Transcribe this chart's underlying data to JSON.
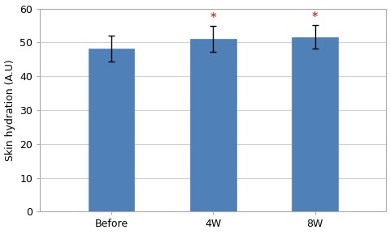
{
  "categories": [
    "Before",
    "4W",
    "8W"
  ],
  "values": [
    48.2,
    51.0,
    51.6
  ],
  "errors": [
    3.8,
    3.8,
    3.5
  ],
  "bar_color": "#5080b8",
  "bar_edgecolor": "#5080b8",
  "bar_width": 0.45,
  "ylabel": "Skin hydration (A.U)",
  "ylim": [
    0,
    60
  ],
  "yticks": [
    0,
    10,
    20,
    30,
    40,
    50,
    60
  ],
  "significance": [
    false,
    true,
    true
  ],
  "sig_color": "#cc0000",
  "sig_marker": "*",
  "sig_fontsize": 11,
  "grid_color": "#d0d0d0",
  "background_color": "#ffffff",
  "ylabel_fontsize": 9,
  "tick_fontsize": 9,
  "errorbar_capsize": 3,
  "errorbar_color": "black",
  "errorbar_linewidth": 1.0,
  "spine_color": "#aaaaaa",
  "xlim_left": -0.7,
  "xlim_right": 2.7
}
